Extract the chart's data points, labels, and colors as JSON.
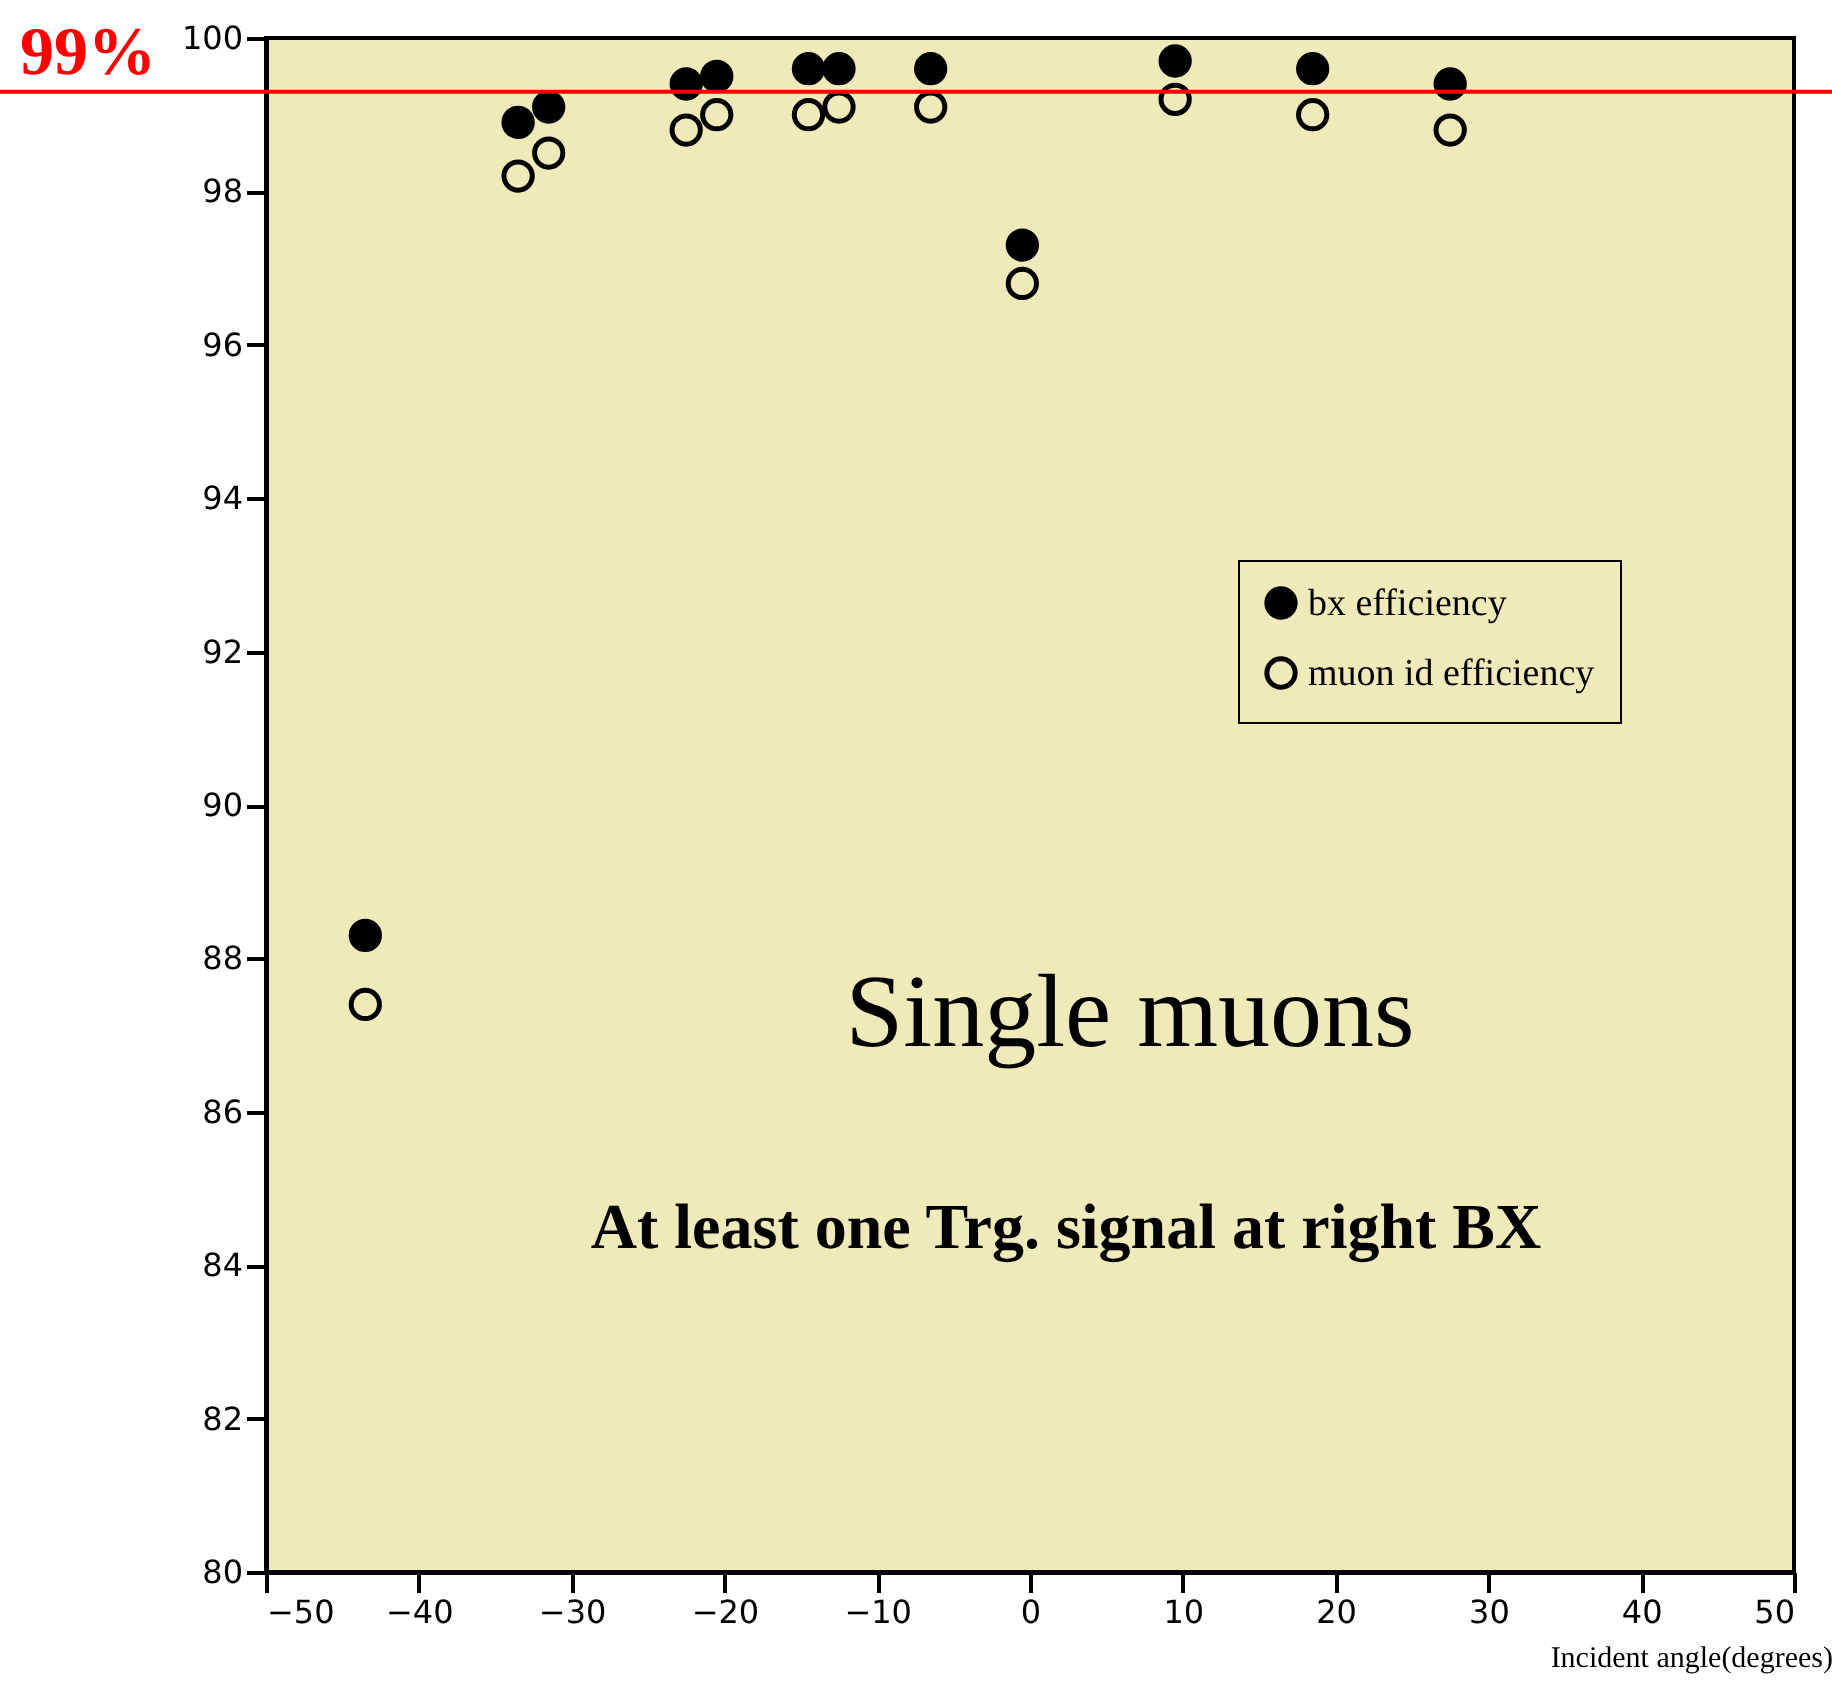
{
  "chart_data": {
    "type": "scatter",
    "xlabel": "Incident angle(degrees)",
    "x": [
      -43.5,
      -33.5,
      -31.5,
      -22.5,
      -20.5,
      -14.5,
      -12.5,
      -6.5,
      -0.5,
      9.5,
      18.5,
      27.5
    ],
    "series": [
      {
        "name": "bx efficiency",
        "color": "#000000",
        "values": [
          88.3,
          98.9,
          99.1,
          99.4,
          99.5,
          99.6,
          99.6,
          99.6,
          97.3,
          99.7,
          99.6,
          99.4
        ]
      },
      {
        "name": "muon id efficiency",
        "color": "#000000",
        "values": [
          87.4,
          98.2,
          98.5,
          98.8,
          99.0,
          99.0,
          99.1,
          99.1,
          96.8,
          99.2,
          99.0,
          98.8
        ]
      }
    ],
    "xlim": [
      -50,
      50
    ],
    "xticks": [
      -50,
      -40,
      -30,
      -20,
      -10,
      0,
      10,
      20,
      30,
      40,
      50
    ],
    "ylim": [
      80,
      100
    ],
    "yticks": [
      80,
      82,
      84,
      86,
      88,
      90,
      92,
      94,
      96,
      98,
      100
    ],
    "ref_lines": [
      {
        "axis": "y",
        "value": 99.3,
        "label": "99%",
        "color": "#ff0000"
      }
    ],
    "annotations": [
      "Single muons",
      "At least one Trg. signal at right BX"
    ],
    "legend": "right",
    "marker": "circle",
    "grid": false
  }
}
